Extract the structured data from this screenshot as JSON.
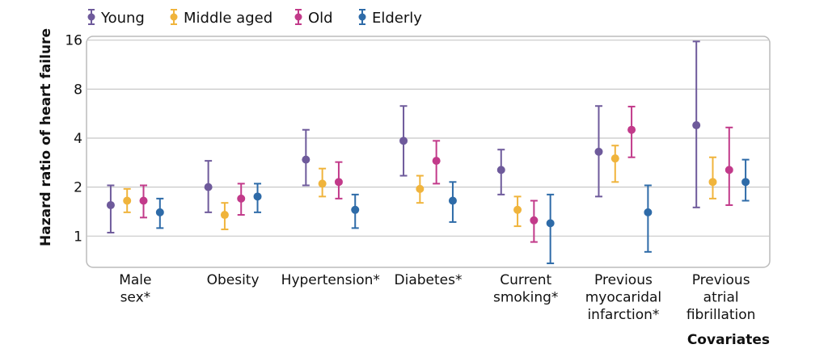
{
  "chart_data": {
    "type": "scatter",
    "title": "",
    "ylabel": "Hazard ratio of heart failure",
    "xlabel": "Covariates",
    "y_scale": "log2",
    "ylim": [
      0.65,
      16.5
    ],
    "yticks": [
      1,
      2,
      4,
      8,
      16
    ],
    "ytick_labels": [
      "1",
      "2",
      "4",
      "8",
      "16"
    ],
    "categories": [
      [
        "Male",
        "sex*"
      ],
      [
        "Obesity"
      ],
      [
        "Hypertension*"
      ],
      [
        "Diabetes*"
      ],
      [
        "Current",
        "smoking*"
      ],
      [
        "Previous",
        "myocaridal",
        "infarction*"
      ],
      [
        "Previous",
        "atrial",
        "fibrillation"
      ]
    ],
    "legend_position": "top-left",
    "series": [
      {
        "name": "Young",
        "color": "#6e5a9b",
        "values": [
          1.55,
          2.0,
          2.95,
          3.85,
          2.55,
          3.3,
          4.8
        ],
        "lower": [
          1.05,
          1.4,
          2.05,
          2.35,
          1.8,
          1.75,
          1.5
        ],
        "upper": [
          2.05,
          2.9,
          4.5,
          6.3,
          3.4,
          6.3,
          15.7
        ]
      },
      {
        "name": "Middle aged",
        "color": "#f0b43c",
        "values": [
          1.65,
          1.35,
          2.1,
          1.95,
          1.45,
          3.0,
          2.15
        ],
        "lower": [
          1.4,
          1.1,
          1.75,
          1.6,
          1.15,
          2.15,
          1.7
        ],
        "upper": [
          1.95,
          1.6,
          2.6,
          2.35,
          1.75,
          3.6,
          3.05
        ]
      },
      {
        "name": "Old",
        "color": "#c23a8a",
        "values": [
          1.65,
          1.7,
          2.15,
          2.9,
          1.25,
          4.5,
          2.55
        ],
        "lower": [
          1.3,
          1.35,
          1.7,
          2.1,
          0.92,
          3.05,
          1.55
        ],
        "upper": [
          2.05,
          2.1,
          2.85,
          3.85,
          1.65,
          6.25,
          4.65
        ]
      },
      {
        "name": "Elderly",
        "color": "#2e6ba8",
        "values": [
          1.4,
          1.75,
          1.45,
          1.65,
          1.2,
          1.4,
          2.15
        ],
        "lower": [
          1.12,
          1.4,
          1.12,
          1.22,
          0.68,
          0.8,
          1.65
        ],
        "upper": [
          1.7,
          2.1,
          1.8,
          2.15,
          1.8,
          2.05,
          2.95
        ]
      }
    ]
  }
}
